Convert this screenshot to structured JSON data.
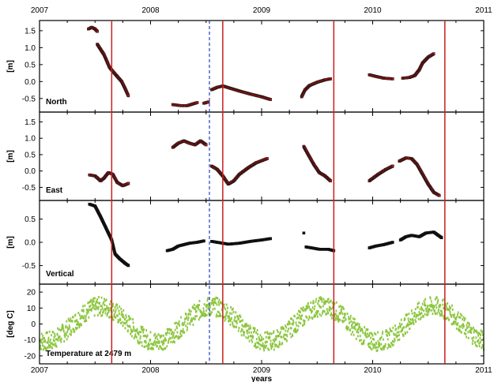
{
  "chart_data": {
    "type": "scatter",
    "x_axis": {
      "label": "years",
      "range": [
        2007,
        2011
      ],
      "ticks": [
        2007,
        2008,
        2009,
        2010,
        2011
      ],
      "tick_labels": [
        "2007",
        "2008",
        "2009",
        "2010",
        "2011"
      ]
    },
    "event_lines": {
      "solid": {
        "color": "#c8201e",
        "x": [
          2007.65,
          2008.65,
          2009.65,
          2010.65
        ]
      },
      "dashed": {
        "color": "#2040c0",
        "x": [
          2008.53
        ]
      }
    },
    "panels": [
      {
        "id": "north",
        "label": "North",
        "ylabel": "[m]",
        "ylim": [
          -0.9,
          1.8
        ],
        "yticks": [
          -0.5,
          0.0,
          0.5,
          1.0,
          1.5
        ],
        "ytick_labels": [
          "-0.5",
          "0.0",
          "0.5",
          "1.0",
          "1.5"
        ],
        "marker_color": "#a01818",
        "series": [
          {
            "points": [
              [
                2007.44,
                1.55
              ],
              [
                2007.47,
                1.6
              ],
              [
                2007.5,
                1.55
              ],
              [
                2007.52,
                1.48
              ]
            ]
          },
          {
            "points": [
              [
                2007.52,
                1.1
              ],
              [
                2007.55,
                0.95
              ],
              [
                2007.58,
                0.8
              ],
              [
                2007.6,
                0.65
              ],
              [
                2007.63,
                0.42
              ],
              [
                2007.66,
                0.3
              ],
              [
                2007.7,
                0.15
              ],
              [
                2007.74,
                0.0
              ],
              [
                2007.77,
                -0.2
              ],
              [
                2007.8,
                -0.42
              ]
            ]
          },
          {
            "points": [
              [
                2008.2,
                -0.68
              ],
              [
                2008.27,
                -0.71
              ],
              [
                2008.33,
                -0.71
              ],
              [
                2008.38,
                -0.66
              ],
              [
                2008.42,
                -0.62
              ]
            ]
          },
          {
            "points": [
              [
                2008.48,
                -0.64
              ],
              [
                2008.52,
                -0.6
              ]
            ]
          },
          {
            "points": [
              [
                2008.55,
                -0.24
              ],
              [
                2008.6,
                -0.17
              ],
              [
                2008.65,
                -0.13
              ],
              [
                2008.72,
                -0.2
              ],
              [
                2008.8,
                -0.28
              ],
              [
                2008.9,
                -0.37
              ],
              [
                2009.0,
                -0.45
              ],
              [
                2009.08,
                -0.53
              ]
            ]
          },
          {
            "points": [
              [
                2009.36,
                -0.45
              ],
              [
                2009.39,
                -0.25
              ],
              [
                2009.43,
                -0.12
              ],
              [
                2009.5,
                -0.02
              ],
              [
                2009.57,
                0.05
              ],
              [
                2009.62,
                0.08
              ]
            ]
          },
          {
            "points": [
              [
                2009.97,
                0.2
              ],
              [
                2010.03,
                0.15
              ],
              [
                2010.1,
                0.1
              ],
              [
                2010.18,
                0.08
              ]
            ]
          },
          {
            "points": [
              [
                2010.27,
                0.1
              ],
              [
                2010.33,
                0.12
              ],
              [
                2010.38,
                0.18
              ],
              [
                2010.42,
                0.35
              ],
              [
                2010.45,
                0.55
              ],
              [
                2010.5,
                0.72
              ],
              [
                2010.55,
                0.82
              ]
            ]
          }
        ]
      },
      {
        "id": "east",
        "label": "East",
        "ylabel": "[m]",
        "ylim": [
          -0.9,
          1.8
        ],
        "yticks": [
          -0.5,
          0.0,
          0.5,
          1.0,
          1.5
        ],
        "ytick_labels": [
          "-0.5",
          "0.0",
          "0.5",
          "1.0",
          "1.5"
        ],
        "marker_color": "#a01818",
        "series": [
          {
            "points": [
              [
                2007.45,
                -0.12
              ],
              [
                2007.5,
                -0.15
              ],
              [
                2007.55,
                -0.3
              ],
              [
                2007.58,
                -0.22
              ],
              [
                2007.62,
                -0.05
              ],
              [
                2007.66,
                -0.1
              ],
              [
                2007.7,
                -0.35
              ],
              [
                2007.75,
                -0.45
              ],
              [
                2007.8,
                -0.38
              ]
            ]
          },
          {
            "points": [
              [
                2008.2,
                0.72
              ],
              [
                2008.25,
                0.85
              ],
              [
                2008.3,
                0.92
              ],
              [
                2008.35,
                0.85
              ],
              [
                2008.4,
                0.8
              ],
              [
                2008.45,
                0.92
              ],
              [
                2008.5,
                0.8
              ]
            ]
          },
          {
            "points": [
              [
                2008.55,
                0.15
              ],
              [
                2008.6,
                0.05
              ],
              [
                2008.65,
                -0.15
              ],
              [
                2008.7,
                -0.4
              ],
              [
                2008.75,
                -0.3
              ],
              [
                2008.8,
                -0.1
              ],
              [
                2008.88,
                0.1
              ],
              [
                2008.95,
                0.25
              ],
              [
                2009.05,
                0.38
              ]
            ]
          },
          {
            "points": [
              [
                2009.38,
                0.75
              ],
              [
                2009.42,
                0.5
              ],
              [
                2009.47,
                0.2
              ],
              [
                2009.52,
                -0.05
              ],
              [
                2009.57,
                -0.15
              ],
              [
                2009.62,
                -0.3
              ]
            ]
          },
          {
            "points": [
              [
                2009.97,
                -0.3
              ],
              [
                2010.05,
                -0.1
              ],
              [
                2010.12,
                0.05
              ],
              [
                2010.18,
                0.15
              ]
            ]
          },
          {
            "points": [
              [
                2010.24,
                0.3
              ],
              [
                2010.3,
                0.4
              ],
              [
                2010.35,
                0.38
              ],
              [
                2010.4,
                0.2
              ],
              [
                2010.45,
                -0.1
              ],
              [
                2010.5,
                -0.4
              ],
              [
                2010.55,
                -0.65
              ],
              [
                2010.6,
                -0.75
              ]
            ]
          }
        ]
      },
      {
        "id": "vertical",
        "label": "Vertical",
        "ylabel": "[m]",
        "ylim": [
          -0.9,
          0.9
        ],
        "yticks": [
          -0.5,
          0.0,
          0.5
        ],
        "ytick_labels": [
          "-0.5",
          "0.0",
          "0.5"
        ],
        "marker_color": "#101010",
        "series": [
          {
            "points": [
              [
                2007.45,
                0.82
              ],
              [
                2007.5,
                0.78
              ],
              [
                2007.55,
                0.55
              ],
              [
                2007.6,
                0.3
              ],
              [
                2007.65,
                0.05
              ],
              [
                2007.68,
                -0.25
              ],
              [
                2007.72,
                -0.35
              ],
              [
                2007.77,
                -0.45
              ],
              [
                2007.8,
                -0.5
              ]
            ]
          },
          {
            "points": [
              [
                2008.15,
                -0.18
              ],
              [
                2008.2,
                -0.15
              ],
              [
                2008.25,
                -0.08
              ],
              [
                2008.3,
                -0.05
              ],
              [
                2008.35,
                -0.02
              ],
              [
                2008.42,
                0.0
              ],
              [
                2008.48,
                0.03
              ]
            ]
          },
          {
            "points": [
              [
                2008.55,
                0.02
              ],
              [
                2008.6,
                0.0
              ],
              [
                2008.65,
                -0.02
              ],
              [
                2008.7,
                -0.04
              ],
              [
                2008.8,
                -0.02
              ],
              [
                2008.9,
                0.02
              ],
              [
                2009.0,
                0.05
              ],
              [
                2009.08,
                0.08
              ]
            ]
          },
          {
            "points": [
              [
                2009.38,
                0.2
              ]
            ]
          },
          {
            "points": [
              [
                2009.4,
                -0.1
              ],
              [
                2009.45,
                -0.12
              ],
              [
                2009.52,
                -0.15
              ],
              [
                2009.6,
                -0.15
              ],
              [
                2009.65,
                -0.18
              ]
            ]
          },
          {
            "points": [
              [
                2009.97,
                -0.12
              ],
              [
                2010.03,
                -0.08
              ],
              [
                2010.1,
                -0.05
              ],
              [
                2010.18,
                0.0
              ]
            ]
          },
          {
            "points": [
              [
                2010.25,
                0.05
              ],
              [
                2010.3,
                0.12
              ],
              [
                2010.35,
                0.15
              ],
              [
                2010.42,
                0.12
              ],
              [
                2010.48,
                0.2
              ],
              [
                2010.55,
                0.22
              ],
              [
                2010.62,
                0.1
              ]
            ]
          }
        ]
      },
      {
        "id": "temperature",
        "label": "Temperature at 2479 m",
        "ylabel": "[deg C]",
        "ylim": [
          -25,
          25
        ],
        "yticks": [
          -20,
          -10,
          0,
          10,
          20
        ],
        "ytick_labels": [
          "-20",
          "-10",
          "0",
          "10",
          "20"
        ],
        "marker_color": "#8cc63f",
        "seasonal_cycle": {
          "mean": 0,
          "amplitude": 11,
          "peak_at_year_fraction": 0.55,
          "noise_spread": 6,
          "x_range": [
            2007.0,
            2011.0
          ]
        }
      }
    ]
  }
}
